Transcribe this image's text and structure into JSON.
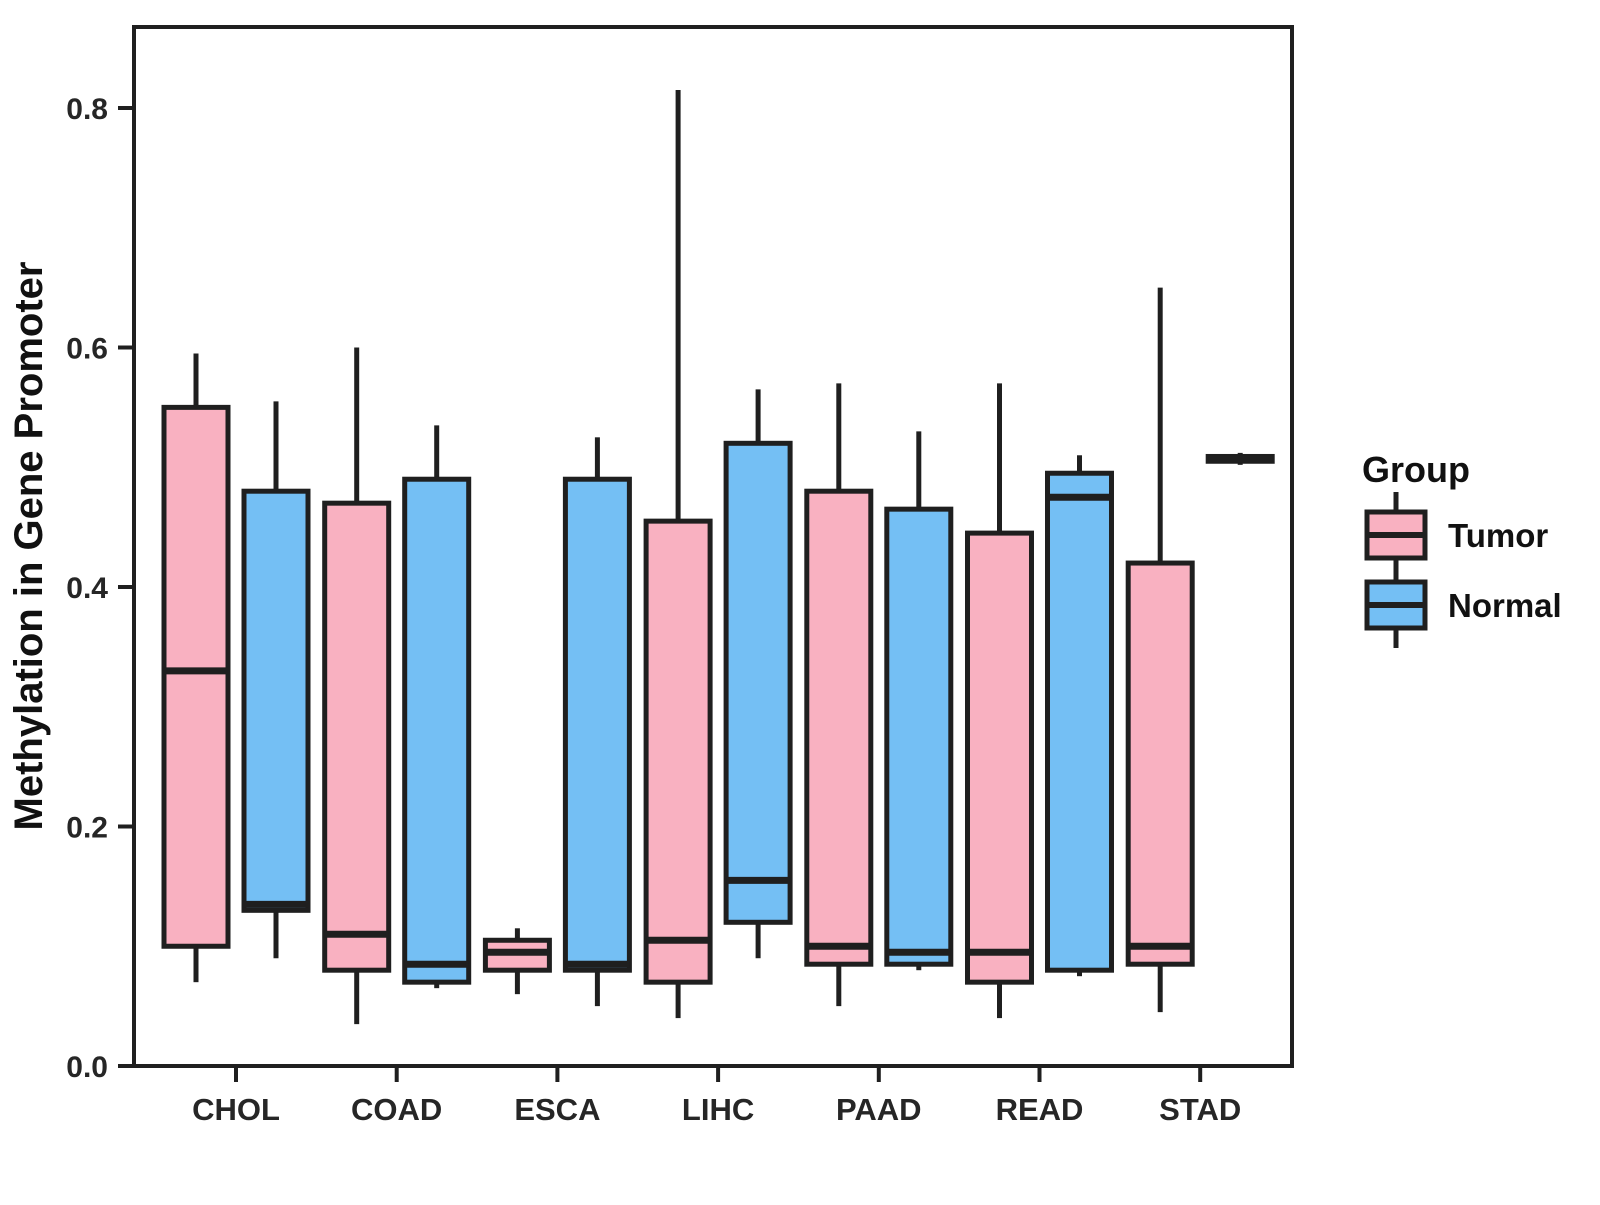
{
  "y_axis": {
    "label": "Methylation in Gene Promoter",
    "tick_labels": [
      "0.0",
      "0.2",
      "0.4",
      "0.6",
      "0.8"
    ]
  },
  "x_axis": {
    "tick_labels": [
      "CHOL",
      "COAD",
      "ESCA",
      "LIHC",
      "PAAD",
      "READ",
      "STAD"
    ]
  },
  "legend": {
    "title": "Group",
    "items": [
      {
        "label": "Tumor",
        "color": "#F9B1C1"
      },
      {
        "label": "Normal",
        "color": "#74BFF4"
      }
    ]
  },
  "colors": {
    "tumor_fill": "#F9B1C1",
    "normal_fill": "#74BFF4",
    "stroke": "#1F1F1F",
    "text": "#262626"
  },
  "chart_data": {
    "type": "boxplot",
    "title": "",
    "xlabel": "",
    "ylabel": "Methylation in Gene Promoter",
    "categories": [
      "CHOL",
      "COAD",
      "ESCA",
      "LIHC",
      "PAAD",
      "READ",
      "STAD"
    ],
    "yticks": [
      0.0,
      0.2,
      0.4,
      0.6,
      0.8
    ],
    "ylim": [
      0,
      0.87
    ],
    "grid": false,
    "legend_position": "right",
    "stats_order": [
      "whisker_low",
      "q1",
      "median",
      "q3",
      "whisker_high"
    ],
    "series": [
      {
        "name": "Tumor",
        "color": "#F9B1C1",
        "boxes": [
          [
            0.07,
            0.1,
            0.33,
            0.55,
            0.595
          ],
          [
            0.035,
            0.08,
            0.11,
            0.47,
            0.6
          ],
          [
            0.06,
            0.08,
            0.095,
            0.105,
            0.115
          ],
          [
            0.04,
            0.07,
            0.105,
            0.455,
            0.815
          ],
          [
            0.05,
            0.085,
            0.1,
            0.48,
            0.57
          ],
          [
            0.04,
            0.07,
            0.095,
            0.445,
            0.57
          ],
          [
            0.045,
            0.085,
            0.1,
            0.42,
            0.65
          ]
        ]
      },
      {
        "name": "Normal",
        "color": "#74BFF4",
        "boxes": [
          [
            0.09,
            0.13,
            0.135,
            0.48,
            0.555
          ],
          [
            0.065,
            0.07,
            0.085,
            0.49,
            0.535
          ],
          [
            0.05,
            0.08,
            0.085,
            0.49,
            0.525
          ],
          [
            0.09,
            0.12,
            0.155,
            0.52,
            0.565
          ],
          [
            0.08,
            0.085,
            0.095,
            0.465,
            0.53
          ],
          [
            0.075,
            0.08,
            0.475,
            0.495,
            0.51
          ],
          [
            0.502,
            0.505,
            0.507,
            0.509,
            0.512
          ]
        ]
      }
    ]
  }
}
